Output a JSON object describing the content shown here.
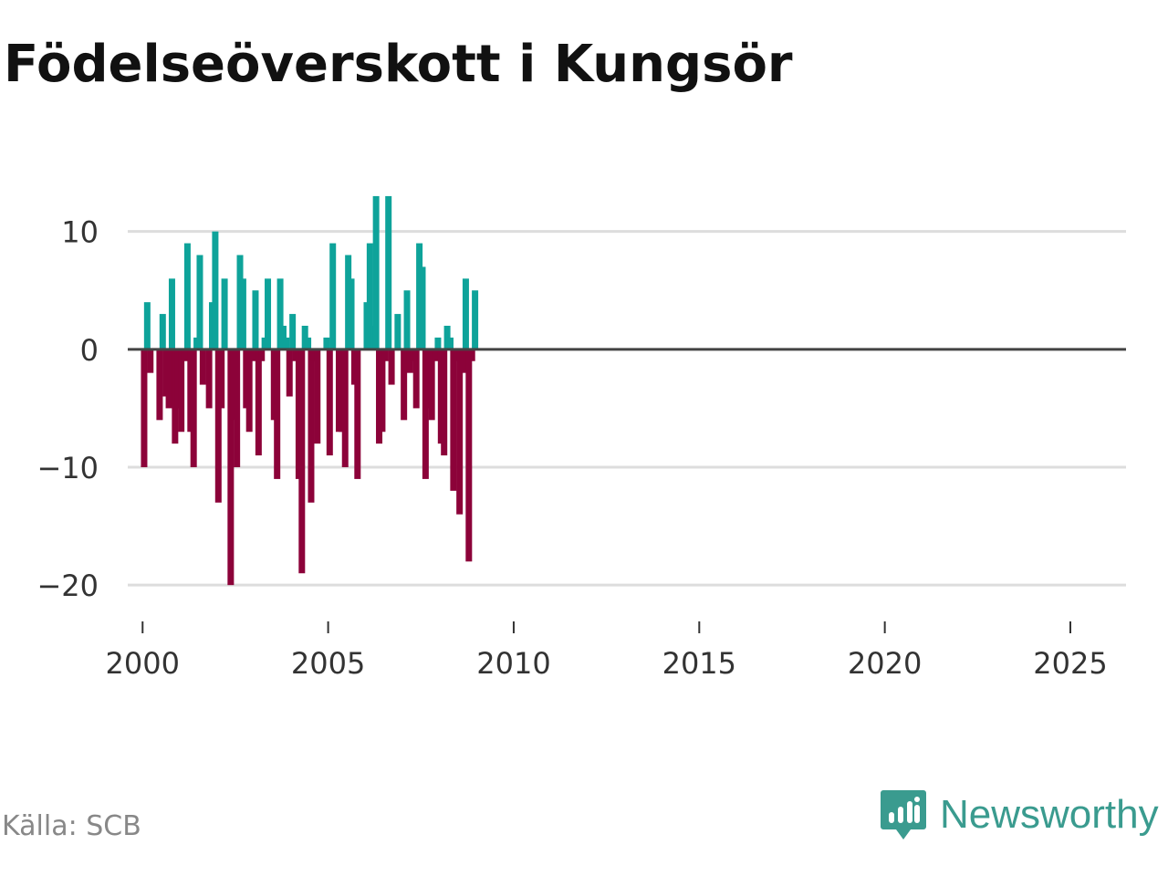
{
  "title": "Födelseöverskott i Kungsör",
  "source": "Källa: SCB",
  "brand": {
    "name": "Newsworthy",
    "icon": "newsworthy-logo-icon",
    "color": "#3a9b8f"
  },
  "colors": {
    "positive": "#0ea39a",
    "negative": "#8c0239",
    "zero_line": "#444444",
    "grid": "#dddddd"
  },
  "chart_data": {
    "type": "bar",
    "title": "Födelseöverskott i Kungsör",
    "xlabel": "",
    "ylabel": "",
    "ylim": [
      -22,
      14
    ],
    "xlim": [
      1999.6,
      2026.5
    ],
    "yticks": [
      10,
      0,
      -10,
      -20
    ],
    "ytick_labels": [
      "10",
      "0",
      "−10",
      "−20"
    ],
    "xticks": [
      2000,
      2005,
      2010,
      2015,
      2020,
      2025
    ],
    "xtick_labels": [
      "2000",
      "2005",
      "2010",
      "2015",
      "2020",
      "2025"
    ],
    "frequency": "monthly",
    "start": "2000-01",
    "values": [
      -10,
      4,
      -2,
      0,
      0,
      -6,
      3,
      -4,
      -5,
      6,
      -8,
      -5,
      -7,
      -1,
      9,
      -7,
      -10,
      1,
      8,
      -3,
      0,
      -5,
      4,
      10,
      -13,
      -5,
      6,
      0,
      -20,
      -6,
      -10,
      8,
      6,
      -5,
      -7,
      -1,
      5,
      -9,
      -1,
      1,
      6,
      0,
      -6,
      -11,
      6,
      2,
      1,
      -4,
      3,
      -1,
      -11,
      -19,
      2,
      1,
      -13,
      -1,
      -8,
      0,
      0,
      1,
      -9,
      9,
      0,
      -7,
      -7,
      -10,
      8,
      6,
      -3,
      -11,
      0,
      0,
      4,
      9,
      2,
      13,
      -8,
      -7,
      -1,
      13,
      -3,
      0,
      3,
      0,
      -6,
      5,
      -2,
      -1,
      -5,
      9,
      7,
      -11,
      -5,
      -6,
      -1,
      1,
      -8,
      -9,
      2,
      1,
      -12,
      -1,
      -14,
      -2,
      6,
      -18,
      -1,
      5
    ]
  }
}
